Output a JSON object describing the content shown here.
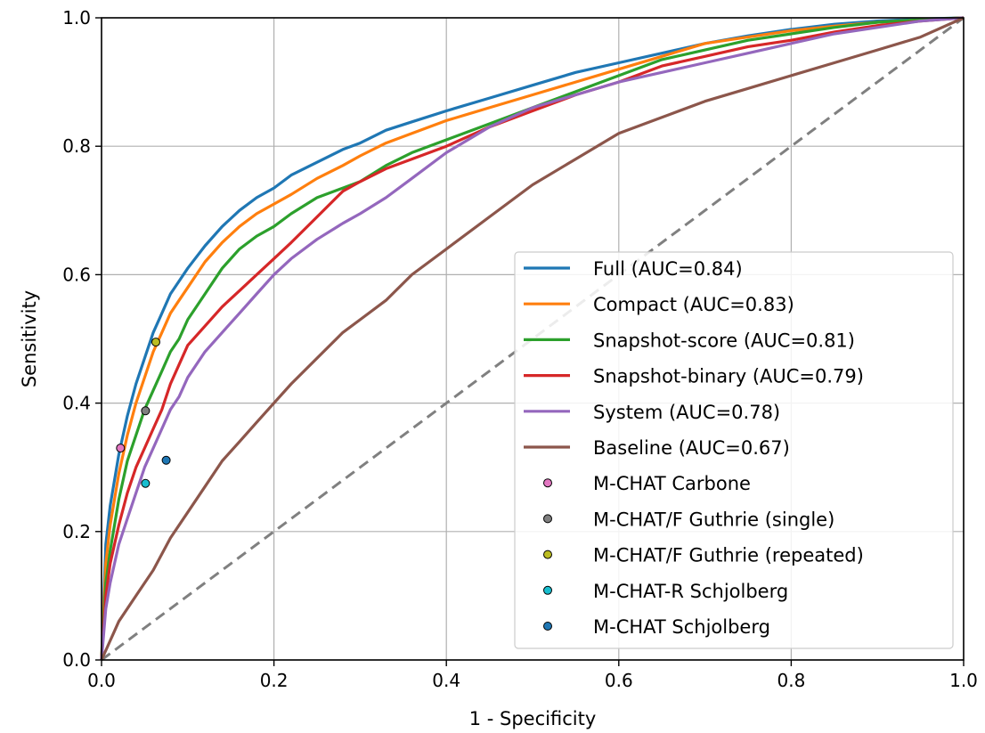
{
  "chart_data": {
    "type": "line",
    "title": "",
    "xlabel": "1 - Specificity",
    "ylabel": "Sensitivity",
    "xlim": [
      0.0,
      1.0
    ],
    "ylim": [
      0.0,
      1.0
    ],
    "grid": true,
    "legend_position": "bottom-right",
    "x_ticks": [
      "0.0",
      "0.2",
      "0.4",
      "0.6",
      "0.8",
      "1.0"
    ],
    "y_ticks": [
      "0.0",
      "0.2",
      "0.4",
      "0.6",
      "0.8",
      "1.0"
    ],
    "reference_line": {
      "color": "#808080",
      "points": [
        [
          0,
          0
        ],
        [
          1,
          1
        ]
      ]
    },
    "series": [
      {
        "name": "Full (AUC=0.84)",
        "color": "#1f77b4",
        "points": [
          [
            0,
            0
          ],
          [
            0.005,
            0.18
          ],
          [
            0.01,
            0.24
          ],
          [
            0.02,
            0.32
          ],
          [
            0.03,
            0.38
          ],
          [
            0.04,
            0.43
          ],
          [
            0.05,
            0.47
          ],
          [
            0.06,
            0.51
          ],
          [
            0.07,
            0.54
          ],
          [
            0.08,
            0.57
          ],
          [
            0.09,
            0.59
          ],
          [
            0.1,
            0.61
          ],
          [
            0.12,
            0.645
          ],
          [
            0.14,
            0.675
          ],
          [
            0.16,
            0.7
          ],
          [
            0.18,
            0.72
          ],
          [
            0.2,
            0.735
          ],
          [
            0.22,
            0.755
          ],
          [
            0.25,
            0.775
          ],
          [
            0.28,
            0.795
          ],
          [
            0.3,
            0.805
          ],
          [
            0.33,
            0.825
          ],
          [
            0.36,
            0.838
          ],
          [
            0.4,
            0.855
          ],
          [
            0.45,
            0.875
          ],
          [
            0.5,
            0.895
          ],
          [
            0.55,
            0.915
          ],
          [
            0.6,
            0.93
          ],
          [
            0.65,
            0.945
          ],
          [
            0.7,
            0.96
          ],
          [
            0.75,
            0.972
          ],
          [
            0.8,
            0.982
          ],
          [
            0.85,
            0.99
          ],
          [
            0.9,
            0.995
          ],
          [
            0.95,
            0.998
          ],
          [
            1,
            1
          ]
        ]
      },
      {
        "name": "Compact (AUC=0.83)",
        "color": "#ff7f0e",
        "points": [
          [
            0,
            0
          ],
          [
            0.005,
            0.15
          ],
          [
            0.01,
            0.21
          ],
          [
            0.02,
            0.29
          ],
          [
            0.03,
            0.35
          ],
          [
            0.04,
            0.4
          ],
          [
            0.05,
            0.44
          ],
          [
            0.06,
            0.48
          ],
          [
            0.07,
            0.51
          ],
          [
            0.08,
            0.54
          ],
          [
            0.09,
            0.56
          ],
          [
            0.1,
            0.58
          ],
          [
            0.12,
            0.62
          ],
          [
            0.14,
            0.65
          ],
          [
            0.16,
            0.675
          ],
          [
            0.18,
            0.695
          ],
          [
            0.2,
            0.71
          ],
          [
            0.22,
            0.725
          ],
          [
            0.25,
            0.75
          ],
          [
            0.28,
            0.77
          ],
          [
            0.3,
            0.785
          ],
          [
            0.33,
            0.805
          ],
          [
            0.36,
            0.82
          ],
          [
            0.4,
            0.84
          ],
          [
            0.45,
            0.86
          ],
          [
            0.5,
            0.88
          ],
          [
            0.55,
            0.9
          ],
          [
            0.6,
            0.92
          ],
          [
            0.65,
            0.94
          ],
          [
            0.7,
            0.96
          ],
          [
            0.75,
            0.97
          ],
          [
            0.8,
            0.98
          ],
          [
            0.85,
            0.987
          ],
          [
            0.9,
            0.993
          ],
          [
            0.95,
            0.997
          ],
          [
            1,
            1
          ]
        ]
      },
      {
        "name": "Snapshot-score (AUC=0.81)",
        "color": "#2ca02c",
        "points": [
          [
            0,
            0
          ],
          [
            0.005,
            0.12
          ],
          [
            0.01,
            0.17
          ],
          [
            0.02,
            0.25
          ],
          [
            0.03,
            0.31
          ],
          [
            0.04,
            0.35
          ],
          [
            0.05,
            0.39
          ],
          [
            0.06,
            0.42
          ],
          [
            0.07,
            0.45
          ],
          [
            0.08,
            0.48
          ],
          [
            0.09,
            0.5
          ],
          [
            0.1,
            0.53
          ],
          [
            0.12,
            0.57
          ],
          [
            0.14,
            0.61
          ],
          [
            0.16,
            0.64
          ],
          [
            0.18,
            0.66
          ],
          [
            0.2,
            0.675
          ],
          [
            0.22,
            0.695
          ],
          [
            0.25,
            0.72
          ],
          [
            0.28,
            0.735
          ],
          [
            0.3,
            0.745
          ],
          [
            0.33,
            0.77
          ],
          [
            0.36,
            0.79
          ],
          [
            0.4,
            0.81
          ],
          [
            0.45,
            0.835
          ],
          [
            0.5,
            0.86
          ],
          [
            0.55,
            0.885
          ],
          [
            0.6,
            0.91
          ],
          [
            0.65,
            0.935
          ],
          [
            0.7,
            0.95
          ],
          [
            0.75,
            0.965
          ],
          [
            0.8,
            0.975
          ],
          [
            0.85,
            0.985
          ],
          [
            0.9,
            0.993
          ],
          [
            0.95,
            0.997
          ],
          [
            1,
            1
          ]
        ]
      },
      {
        "name": "Snapshot-binary (AUC=0.79)",
        "color": "#d62728",
        "points": [
          [
            0,
            0
          ],
          [
            0.005,
            0.1
          ],
          [
            0.01,
            0.15
          ],
          [
            0.02,
            0.21
          ],
          [
            0.03,
            0.26
          ],
          [
            0.04,
            0.3
          ],
          [
            0.05,
            0.33
          ],
          [
            0.06,
            0.36
          ],
          [
            0.07,
            0.39
          ],
          [
            0.08,
            0.43
          ],
          [
            0.09,
            0.46
          ],
          [
            0.1,
            0.49
          ],
          [
            0.12,
            0.52
          ],
          [
            0.14,
            0.55
          ],
          [
            0.16,
            0.575
          ],
          [
            0.18,
            0.6
          ],
          [
            0.2,
            0.625
          ],
          [
            0.22,
            0.65
          ],
          [
            0.25,
            0.69
          ],
          [
            0.28,
            0.73
          ],
          [
            0.3,
            0.745
          ],
          [
            0.33,
            0.765
          ],
          [
            0.36,
            0.78
          ],
          [
            0.4,
            0.8
          ],
          [
            0.45,
            0.83
          ],
          [
            0.5,
            0.855
          ],
          [
            0.55,
            0.88
          ],
          [
            0.6,
            0.9
          ],
          [
            0.65,
            0.925
          ],
          [
            0.7,
            0.94
          ],
          [
            0.75,
            0.955
          ],
          [
            0.8,
            0.965
          ],
          [
            0.85,
            0.978
          ],
          [
            0.9,
            0.988
          ],
          [
            0.95,
            0.995
          ],
          [
            1,
            1
          ]
        ]
      },
      {
        "name": "System (AUC=0.78)",
        "color": "#9467bd",
        "points": [
          [
            0,
            0
          ],
          [
            0.005,
            0.08
          ],
          [
            0.01,
            0.12
          ],
          [
            0.02,
            0.18
          ],
          [
            0.03,
            0.22
          ],
          [
            0.04,
            0.26
          ],
          [
            0.05,
            0.3
          ],
          [
            0.06,
            0.33
          ],
          [
            0.07,
            0.36
          ],
          [
            0.08,
            0.39
          ],
          [
            0.09,
            0.41
          ],
          [
            0.1,
            0.44
          ],
          [
            0.12,
            0.48
          ],
          [
            0.14,
            0.51
          ],
          [
            0.16,
            0.54
          ],
          [
            0.18,
            0.57
          ],
          [
            0.2,
            0.6
          ],
          [
            0.22,
            0.625
          ],
          [
            0.25,
            0.655
          ],
          [
            0.28,
            0.68
          ],
          [
            0.3,
            0.695
          ],
          [
            0.33,
            0.72
          ],
          [
            0.36,
            0.75
          ],
          [
            0.4,
            0.79
          ],
          [
            0.45,
            0.83
          ],
          [
            0.5,
            0.86
          ],
          [
            0.55,
            0.88
          ],
          [
            0.6,
            0.9
          ],
          [
            0.65,
            0.915
          ],
          [
            0.7,
            0.93
          ],
          [
            0.75,
            0.945
          ],
          [
            0.8,
            0.96
          ],
          [
            0.85,
            0.975
          ],
          [
            0.9,
            0.985
          ],
          [
            0.95,
            0.995
          ],
          [
            1,
            1
          ]
        ]
      },
      {
        "name": "Baseline (AUC=0.67)",
        "color": "#8c564b",
        "points": [
          [
            0,
            0
          ],
          [
            0.01,
            0.03
          ],
          [
            0.02,
            0.06
          ],
          [
            0.04,
            0.1
          ],
          [
            0.06,
            0.14
          ],
          [
            0.08,
            0.19
          ],
          [
            0.1,
            0.23
          ],
          [
            0.12,
            0.27
          ],
          [
            0.14,
            0.31
          ],
          [
            0.16,
            0.34
          ],
          [
            0.18,
            0.37
          ],
          [
            0.2,
            0.4
          ],
          [
            0.22,
            0.43
          ],
          [
            0.25,
            0.47
          ],
          [
            0.28,
            0.51
          ],
          [
            0.3,
            0.53
          ],
          [
            0.33,
            0.56
          ],
          [
            0.36,
            0.6
          ],
          [
            0.4,
            0.64
          ],
          [
            0.45,
            0.69
          ],
          [
            0.5,
            0.74
          ],
          [
            0.55,
            0.78
          ],
          [
            0.6,
            0.82
          ],
          [
            0.65,
            0.845
          ],
          [
            0.7,
            0.87
          ],
          [
            0.75,
            0.89
          ],
          [
            0.8,
            0.91
          ],
          [
            0.85,
            0.93
          ],
          [
            0.9,
            0.95
          ],
          [
            0.95,
            0.97
          ],
          [
            1,
            1
          ]
        ]
      }
    ],
    "markers": [
      {
        "name": "M-CHAT Carbone",
        "color": "#e377c2",
        "x": 0.022,
        "y": 0.33
      },
      {
        "name": "M-CHAT/F Guthrie (single)",
        "color": "#7f7f7f",
        "x": 0.051,
        "y": 0.388
      },
      {
        "name": "M-CHAT/F Guthrie (repeated)",
        "color": "#bcbd22",
        "x": 0.063,
        "y": 0.495
      },
      {
        "name": "M-CHAT-R Schjolberg",
        "color": "#17becf",
        "x": 0.051,
        "y": 0.275
      },
      {
        "name": "M-CHAT Schjolberg",
        "color": "#1f77b4",
        "x": 0.075,
        "y": 0.311
      }
    ]
  }
}
